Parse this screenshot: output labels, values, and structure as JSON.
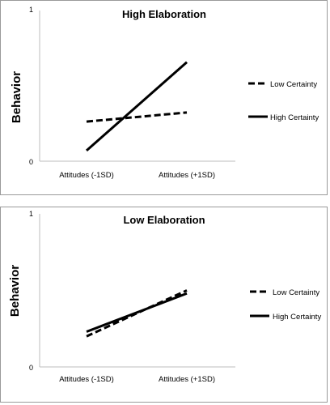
{
  "chart_data": [
    {
      "type": "line",
      "title": "High Elaboration",
      "xlabel": "",
      "ylabel": "Behavior",
      "categories": [
        "Attitudes (-1SD)",
        "Attitudes (+1SD)"
      ],
      "ylim": [
        0,
        1
      ],
      "yticks": [
        "0",
        "1"
      ],
      "grid": false,
      "legend_position": "right",
      "series": [
        {
          "name": "Low Certainty",
          "values": [
            0.26,
            0.32
          ],
          "style": "dashed"
        },
        {
          "name": "High Certainty",
          "values": [
            0.07,
            0.65
          ],
          "style": "solid"
        }
      ]
    },
    {
      "type": "line",
      "title": "Low Elaboration",
      "xlabel": "",
      "ylabel": "Behavior",
      "categories": [
        "Attitudes (-1SD)",
        "Attitudes (+1SD)"
      ],
      "ylim": [
        0,
        1
      ],
      "yticks": [
        "0",
        "1"
      ],
      "grid": false,
      "legend_position": "right",
      "series": [
        {
          "name": "Low Certainty",
          "values": [
            0.2,
            0.5
          ],
          "style": "dashed"
        },
        {
          "name": "High Certainty",
          "values": [
            0.23,
            0.48
          ],
          "style": "solid"
        }
      ]
    }
  ],
  "colors": {
    "line": "#000000",
    "axis": "#bdbdbd",
    "frame": "#9a9a9a"
  }
}
